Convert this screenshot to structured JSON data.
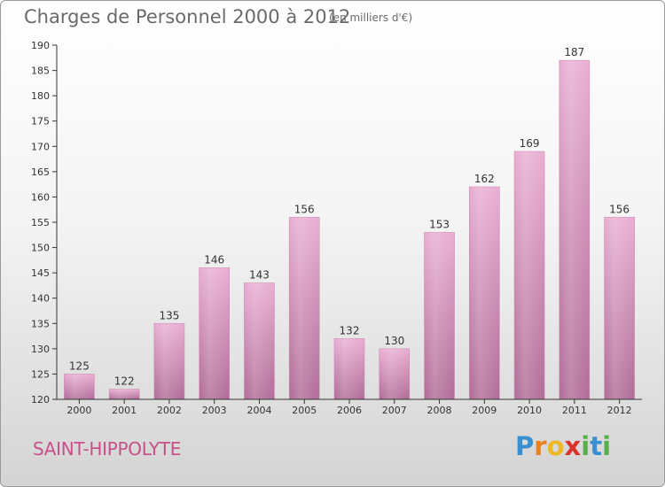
{
  "header": {
    "title": "Charges de Personnel 2000 à 2012",
    "subtitle": "(en milliers d'€)"
  },
  "footer": {
    "city": "SAINT-HIPPOLYTE",
    "logo_letters": [
      "P",
      "r",
      "o",
      "x",
      "i",
      "t",
      "i"
    ],
    "logo_colors": [
      "#3a8fd0",
      "#e8821e",
      "#f0b820",
      "#d8342c",
      "#58b04a",
      "#3a8fd0",
      "#58b04a"
    ]
  },
  "colors": {
    "bar_top": "#e9aed3",
    "bar_bottom": "#b06c97",
    "axis": "#333333",
    "label": "#333333"
  },
  "chart_data": {
    "type": "bar",
    "categories": [
      "2000",
      "2001",
      "2002",
      "2003",
      "2004",
      "2005",
      "2006",
      "2007",
      "2008",
      "2009",
      "2010",
      "2011",
      "2012"
    ],
    "values": [
      125,
      122,
      135,
      146,
      143,
      156,
      132,
      130,
      153,
      162,
      169,
      187,
      156
    ],
    "title": "Charges de Personnel 2000 à 2012",
    "subtitle": "(en milliers d'€)",
    "ylim": [
      120,
      190
    ],
    "yticks": [
      120,
      125,
      130,
      135,
      140,
      145,
      150,
      155,
      160,
      165,
      170,
      175,
      180,
      185,
      190
    ],
    "data_labels": true,
    "grid": false
  }
}
